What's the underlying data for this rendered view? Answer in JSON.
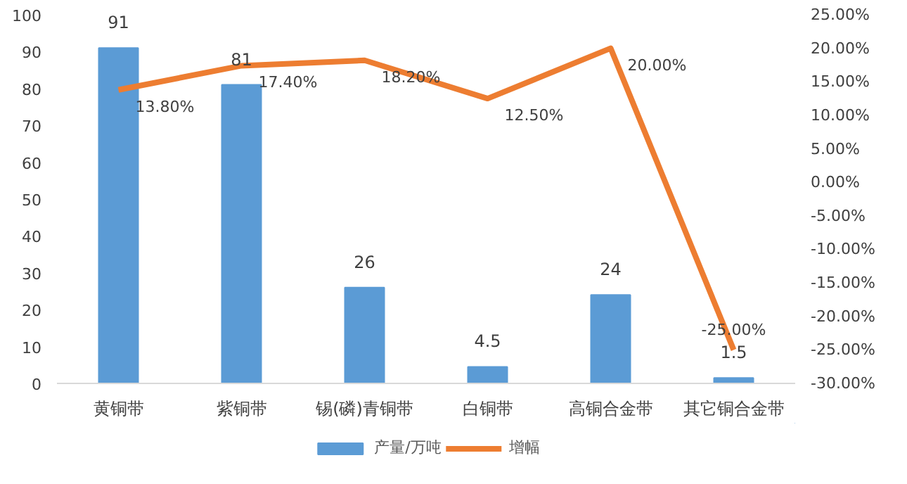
{
  "chart_data": {
    "type": "bar",
    "categories": [
      "黄铜带",
      "紫铜带",
      "锡(磷)青铜带",
      "白铜带",
      "高铜合金带",
      "其它铜合金带"
    ],
    "series": [
      {
        "name": "产量/万吨",
        "color": "#5b9bd5",
        "values": [
          91,
          81,
          26,
          4.5,
          24,
          1.5
        ],
        "value_labels": [
          "91",
          "81",
          "26",
          "4.5",
          "24",
          "1.5"
        ]
      },
      {
        "name": "增幅",
        "type": "line",
        "axis": "y2",
        "color": "#ed7d31",
        "values": [
          13.8,
          17.4,
          18.2,
          12.5,
          20.0,
          -25.0
        ],
        "value_labels": [
          "13.80%",
          "17.40%",
          "18.20%",
          "12.50%",
          "20.00%",
          "-25.00%"
        ]
      }
    ],
    "ylim": [
      0,
      100
    ],
    "yticks": [
      0,
      10,
      20,
      30,
      40,
      50,
      60,
      70,
      80,
      90,
      100
    ],
    "y2lim": [
      -30,
      25
    ],
    "y2ticks": [
      {
        "value": -30,
        "label": "-30.00%"
      },
      {
        "value": -25,
        "label": "-25.00%"
      },
      {
        "value": -20,
        "label": "-20.00%"
      },
      {
        "value": -15,
        "label": "-15.00%"
      },
      {
        "value": -10,
        "label": "-10.00%"
      },
      {
        "value": -5,
        "label": "-5.00%"
      },
      {
        "value": 0,
        "label": "0.00%"
      },
      {
        "value": 5,
        "label": "5.00%"
      },
      {
        "value": 10,
        "label": "10.00%"
      },
      {
        "value": 15,
        "label": "15.00%"
      },
      {
        "value": 20,
        "label": "20.00%"
      },
      {
        "value": 25,
        "label": "25.00%"
      }
    ],
    "grid": false,
    "legend": "bottom",
    "marker": "none",
    "line_style": "solid"
  }
}
